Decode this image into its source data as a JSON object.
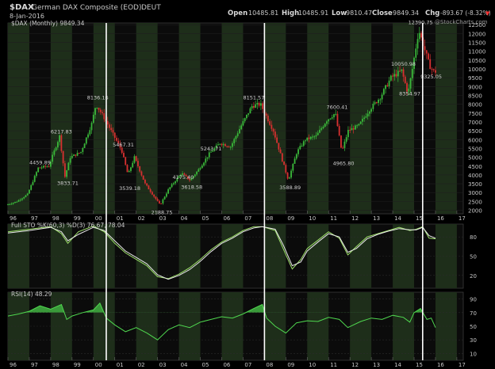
{
  "header": {
    "symbol": "$DAX",
    "name": "German DAX Composite (EOD)",
    "exchange": "DEUT",
    "date": "8-Jan-2016",
    "open_label": "Open",
    "open": "10485.81",
    "high_label": "High",
    "high": "10485.91",
    "low_label": "Low",
    "low": "9810.47",
    "close_label": "Close",
    "close": "9849.34",
    "chg_label": "Chg",
    "chg": "-893.67 (-8.32%)",
    "chg_marker": "▼",
    "watermark": "@StockCharts.com"
  },
  "colors": {
    "background": "#000000",
    "panel_bg": "#0b0b0b",
    "band": "#1e2e1a",
    "up": "#3ab83a",
    "down": "#d83030",
    "accent_line": "#9ee06a",
    "text": "#c8c8c8",
    "change_negative": "#ff3030"
  },
  "chart_data": [
    {
      "type": "candlestick",
      "title": "$DAX German DAX Composite (EOD) DEUT",
      "legend": "$DAX (Monthly) 9849.34",
      "x_tick_labels": [
        "96",
        "97",
        "98",
        "99",
        "00",
        "01",
        "02",
        "03",
        "04",
        "05",
        "06",
        "07",
        "08",
        "09",
        "10",
        "11",
        "12",
        "13",
        "14",
        "15",
        "16",
        "17"
      ],
      "y_tick_labels": [
        "2000",
        "2500",
        "3000",
        "3500",
        "4000",
        "4500",
        "5000",
        "5500",
        "6000",
        "6500",
        "7000",
        "7500",
        "8000",
        "8500",
        "9000",
        "9500",
        "10000",
        "10500",
        "11000",
        "11500",
        "12000",
        "12500"
      ],
      "ylim": [
        1800,
        12600
      ],
      "xlim": [
        1996.0,
        2017.3
      ],
      "vertical_markers": [
        2000.6,
        2008.0,
        2015.4
      ],
      "annotations": [
        {
          "text": "4459.89",
          "x": 1997.5,
          "y": 4460
        },
        {
          "text": "6217.83",
          "x": 1998.5,
          "y": 6218
        },
        {
          "text": "3833.71",
          "x": 1998.8,
          "y": 3834
        },
        {
          "text": "8136.16",
          "x": 2000.2,
          "y": 8136
        },
        {
          "text": "5467.31",
          "x": 2001.4,
          "y": 5467
        },
        {
          "text": "3539.18",
          "x": 2001.7,
          "y": 3539
        },
        {
          "text": "2188.75",
          "x": 2003.2,
          "y": 2189
        },
        {
          "text": "4175.40",
          "x": 2004.2,
          "y": 4175
        },
        {
          "text": "3618.58",
          "x": 2004.6,
          "y": 3619
        },
        {
          "text": "5243.71",
          "x": 2005.5,
          "y": 5244
        },
        {
          "text": "8151.57",
          "x": 2007.5,
          "y": 8152
        },
        {
          "text": "3588.89",
          "x": 2009.2,
          "y": 3589
        },
        {
          "text": "7600.41",
          "x": 2011.4,
          "y": 7600
        },
        {
          "text": "4965.80",
          "x": 2011.7,
          "y": 4966
        },
        {
          "text": "10050.98",
          "x": 2014.5,
          "y": 10051
        },
        {
          "text": "8354.97",
          "x": 2014.8,
          "y": 8355
        },
        {
          "text": "12390.75",
          "x": 2015.3,
          "y": 12391
        },
        {
          "text": "9325.05",
          "x": 2015.8,
          "y": 9325
        }
      ],
      "series": [
        {
          "name": "$DAX (Monthly)",
          "x": [
            1996.0,
            1996.5,
            1997.0,
            1997.5,
            1998.0,
            1998.5,
            1998.75,
            1999.0,
            1999.5,
            2000.0,
            2000.2,
            2000.6,
            2001.0,
            2001.4,
            2001.7,
            2002.0,
            2002.5,
            2003.2,
            2003.6,
            2004.0,
            2004.2,
            2004.6,
            2005.0,
            2005.5,
            2006.0,
            2006.5,
            2007.0,
            2007.5,
            2007.9,
            2008.5,
            2009.2,
            2009.6,
            2010.0,
            2010.5,
            2011.0,
            2011.4,
            2011.7,
            2012.0,
            2012.5,
            2013.0,
            2013.5,
            2014.0,
            2014.5,
            2014.8,
            2015.0,
            2015.3,
            2015.6,
            2015.8,
            2016.0
          ],
          "values": [
            2300,
            2500,
            2900,
            4400,
            4500,
            6200,
            3900,
            5000,
            5300,
            6900,
            8000,
            7200,
            6300,
            5400,
            4000,
            5000,
            3500,
            2300,
            3200,
            3800,
            4100,
            3700,
            4300,
            5200,
            5800,
            5600,
            6800,
            7900,
            8000,
            6500,
            3700,
            5300,
            6000,
            6200,
            7100,
            7500,
            5300,
            6500,
            6800,
            7700,
            8400,
            9500,
            9900,
            8600,
            10000,
            12200,
            11000,
            10200,
            9850
          ]
        }
      ]
    },
    {
      "type": "line",
      "title": "Full STO %K(60,3) %D(3) 76.67, 78.04",
      "legend": "Full STO %K(60,3) %D(3) 76.67, 78.04",
      "y_tick_labels": [
        "80",
        "50",
        "20"
      ],
      "ylim": [
        0,
        100
      ],
      "xlim": [
        1996.0,
        2017.3
      ],
      "series": [
        {
          "name": "%K",
          "x": [
            1996.0,
            1997.0,
            1998.0,
            1998.5,
            1998.8,
            1999.3,
            2000.0,
            2000.5,
            2001.0,
            2001.5,
            2002.0,
            2002.5,
            2003.0,
            2003.5,
            2004.0,
            2004.5,
            2005.0,
            2005.5,
            2006.0,
            2006.5,
            2007.0,
            2007.5,
            2007.9,
            2008.5,
            2008.9,
            2009.3,
            2009.7,
            2010.0,
            2010.5,
            2011.0,
            2011.5,
            2011.9,
            2012.3,
            2012.8,
            2013.3,
            2013.8,
            2014.3,
            2014.8,
            2015.1,
            2015.4,
            2015.7,
            2016.0
          ],
          "values": [
            88,
            92,
            96,
            85,
            70,
            88,
            97,
            88,
            70,
            55,
            45,
            35,
            18,
            15,
            22,
            32,
            45,
            60,
            72,
            80,
            90,
            96,
            96,
            90,
            60,
            30,
            45,
            62,
            75,
            88,
            78,
            52,
            65,
            80,
            85,
            90,
            95,
            90,
            92,
            96,
            78,
            77
          ]
        },
        {
          "name": "%D",
          "x": [
            1996.0,
            1997.0,
            1998.0,
            1998.5,
            1998.8,
            1999.3,
            2000.0,
            2000.5,
            2001.0,
            2001.5,
            2002.0,
            2002.5,
            2003.0,
            2003.5,
            2004.0,
            2004.5,
            2005.0,
            2005.5,
            2006.0,
            2006.5,
            2007.0,
            2007.5,
            2007.9,
            2008.5,
            2008.9,
            2009.3,
            2009.7,
            2010.0,
            2010.5,
            2011.0,
            2011.5,
            2011.9,
            2012.3,
            2012.8,
            2013.3,
            2013.8,
            2014.3,
            2014.8,
            2015.1,
            2015.4,
            2015.7,
            2016.0
          ],
          "values": [
            86,
            90,
            95,
            88,
            74,
            84,
            95,
            90,
            74,
            58,
            48,
            38,
            21,
            14,
            20,
            29,
            42,
            57,
            70,
            78,
            88,
            94,
            96,
            92,
            66,
            35,
            41,
            58,
            72,
            85,
            80,
            56,
            62,
            77,
            84,
            89,
            93,
            91,
            91,
            95,
            82,
            78
          ]
        }
      ]
    },
    {
      "type": "area",
      "title": "RSI(14) 48.29",
      "legend": "RSI(14) 48.29",
      "y_tick_labels": [
        "90",
        "70",
        "50",
        "30",
        "10"
      ],
      "ylim": [
        0,
        100
      ],
      "xlim": [
        1996.0,
        2017.3
      ],
      "threshold": 70,
      "series": [
        {
          "name": "RSI(14)",
          "x": [
            1996.0,
            1996.5,
            1997.0,
            1997.5,
            1998.0,
            1998.5,
            1998.75,
            1999.0,
            1999.5,
            2000.0,
            2000.3,
            2000.6,
            2001.0,
            2001.5,
            2002.0,
            2002.5,
            2003.0,
            2003.5,
            2004.0,
            2004.5,
            2005.0,
            2005.5,
            2006.0,
            2006.5,
            2007.0,
            2007.5,
            2007.9,
            2008.1,
            2008.5,
            2009.0,
            2009.5,
            2010.0,
            2010.5,
            2011.0,
            2011.5,
            2011.9,
            2012.5,
            2013.0,
            2013.5,
            2014.0,
            2014.5,
            2014.8,
            2015.0,
            2015.3,
            2015.6,
            2015.8,
            2016.0
          ],
          "values": [
            65,
            68,
            72,
            80,
            75,
            82,
            60,
            65,
            70,
            74,
            84,
            62,
            52,
            42,
            48,
            40,
            30,
            45,
            52,
            48,
            56,
            60,
            64,
            62,
            68,
            76,
            82,
            62,
            50,
            40,
            55,
            58,
            57,
            63,
            60,
            48,
            57,
            62,
            60,
            66,
            63,
            56,
            70,
            76,
            60,
            62,
            48
          ]
        }
      ]
    }
  ]
}
